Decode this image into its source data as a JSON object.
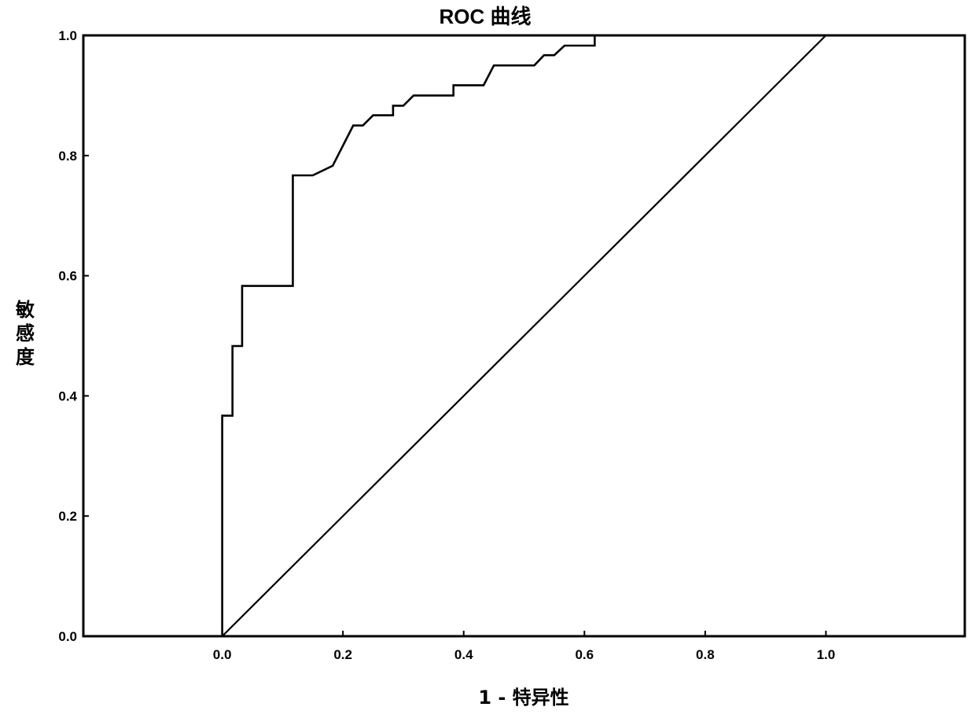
{
  "chart_data": {
    "type": "line",
    "title": "ROC 曲线",
    "xlabel": "1 - 特异性",
    "ylabel": "敏感度",
    "xlim": [
      -0.23,
      1.23
    ],
    "ylim": [
      0,
      1
    ],
    "x_ticks": [
      0.0,
      0.2,
      0.4,
      0.6,
      0.8,
      1.0
    ],
    "x_tick_labels": [
      "0.0",
      "0.2",
      "0.4",
      "0.6",
      "0.8",
      "1.0"
    ],
    "y_ticks": [
      0.0,
      0.2,
      0.4,
      0.6,
      0.8,
      1.0
    ],
    "y_tick_labels": [
      "0.0",
      "0.2",
      "0.4",
      "0.6",
      "0.8",
      "1.0"
    ],
    "grid": false,
    "series": [
      {
        "points": [
          [
            0.0,
            0.0
          ],
          [
            0.0,
            0.367
          ],
          [
            0.017,
            0.367
          ],
          [
            0.017,
            0.483
          ],
          [
            0.033,
            0.483
          ],
          [
            0.033,
            0.583
          ],
          [
            0.117,
            0.583
          ],
          [
            0.117,
            0.767
          ],
          [
            0.15,
            0.767
          ],
          [
            0.183,
            0.783
          ],
          [
            0.217,
            0.85
          ],
          [
            0.233,
            0.85
          ],
          [
            0.25,
            0.867
          ],
          [
            0.283,
            0.867
          ],
          [
            0.283,
            0.883
          ],
          [
            0.3,
            0.883
          ],
          [
            0.317,
            0.9
          ],
          [
            0.383,
            0.9
          ],
          [
            0.383,
            0.917
          ],
          [
            0.433,
            0.917
          ],
          [
            0.45,
            0.95
          ],
          [
            0.517,
            0.95
          ],
          [
            0.533,
            0.967
          ],
          [
            0.55,
            0.967
          ],
          [
            0.567,
            0.983
          ],
          [
            0.617,
            0.983
          ],
          [
            0.617,
            1.0
          ]
        ]
      },
      {
        "points": [
          [
            0.0,
            0.0
          ],
          [
            1.0,
            1.0
          ]
        ]
      }
    ]
  }
}
